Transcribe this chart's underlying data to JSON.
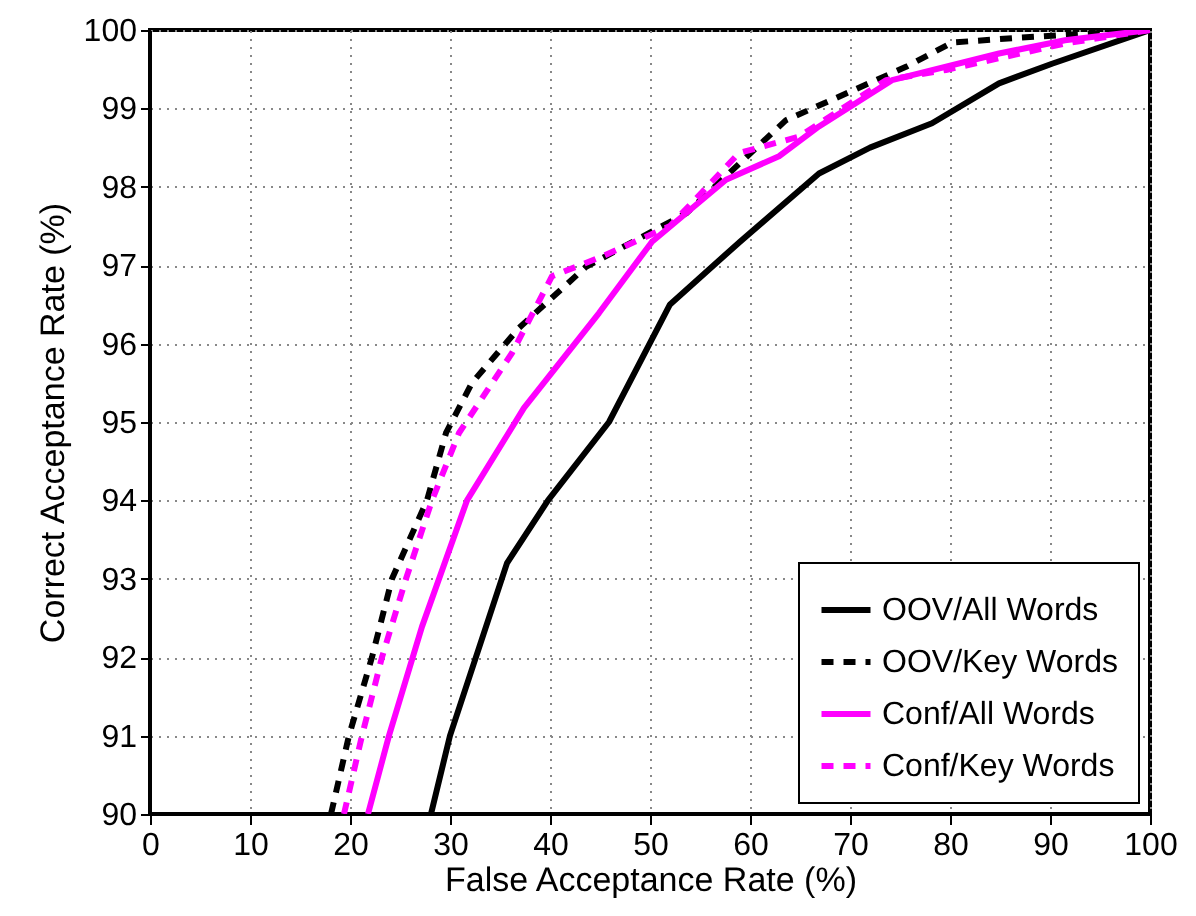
{
  "chart_data": {
    "type": "line",
    "xlabel": "False Acceptance Rate (%)",
    "ylabel": "Correct Acceptance Rate (%)",
    "xlim": [
      0,
      100
    ],
    "xticks": [
      0,
      10,
      20,
      30,
      40,
      50,
      60,
      70,
      80,
      90,
      100
    ],
    "ylim": [
      90,
      100
    ],
    "yticks": [
      90,
      91,
      92,
      93,
      94,
      95,
      96,
      97,
      98,
      99,
      100
    ],
    "grid": true,
    "legend": "bottom right",
    "series": [
      {
        "name": "OOV/All Words",
        "color": "#000000",
        "line_style": "solid",
        "x": [
          28.1,
          30.0,
          35.7,
          39.8,
          45.9,
          52.0,
          59.0,
          66.9,
          72.0,
          78.2,
          84.9,
          90.2,
          100
        ],
        "values": [
          90,
          91,
          93.2,
          94.0,
          95.0,
          96.5,
          97.3,
          98.17,
          98.5,
          98.81,
          99.32,
          99.57,
          100
        ]
      },
      {
        "name": "OOV/Key Words",
        "color": "#000000",
        "line_style": "dashed",
        "x": [
          18.1,
          19.9,
          22.2,
          24.2,
          27.7,
          29.6,
          32.2,
          36.9,
          43.6,
          53.6,
          63.6,
          75.6,
          80.2,
          86.7,
          100
        ],
        "values": [
          90,
          91,
          92,
          93,
          94,
          94.86,
          95.5,
          96.2,
          96.98,
          97.66,
          98.85,
          99.53,
          99.84,
          99.9,
          100
        ]
      },
      {
        "name": "Conf/All Words",
        "color": "#ff00ff",
        "line_style": "solid",
        "x": [
          21.8,
          23.9,
          27.2,
          31.7,
          37.4,
          44.9,
          50.2,
          57.6,
          62.9,
          66.9,
          74.2,
          84.9,
          91.5,
          100
        ],
        "values": [
          90,
          91,
          92.39,
          94,
          95.18,
          96.39,
          97.3,
          98.09,
          98.39,
          98.77,
          99.36,
          99.7,
          99.87,
          100
        ]
      },
      {
        "name": "Conf/Key Words",
        "color": "#ff00ff",
        "line_style": "dashed",
        "x": [
          19.4,
          21.2,
          23.2,
          25.6,
          28.2,
          30.9,
          36.2,
          40.2,
          45.0,
          52.0,
          58.9,
          64.9,
          73.6,
          79.6,
          91.6,
          100
        ],
        "values": [
          90,
          91,
          92,
          93,
          94,
          94.86,
          95.88,
          96.86,
          97.1,
          97.5,
          98.43,
          98.64,
          99.36,
          99.49,
          99.83,
          100
        ]
      }
    ]
  }
}
